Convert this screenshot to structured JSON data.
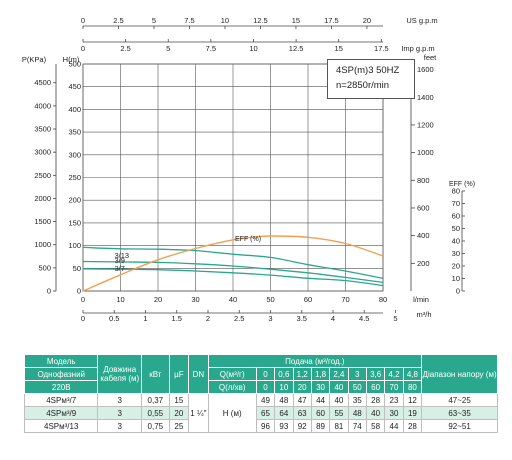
{
  "chart_data": {
    "type": "line",
    "title": "4SP(m)3  50HZ",
    "subtitle": "n=2850r/min",
    "axes": {
      "x_bottom": {
        "label": "l/min",
        "range": [
          0,
          80
        ],
        "ticks": [
          "0",
          "10",
          "20",
          "30",
          "40",
          "50",
          "60",
          "70",
          "80"
        ]
      },
      "x_bottom2": {
        "label": "m³/h",
        "ticks": [
          "0",
          "0.5",
          "1",
          "1.5",
          "2",
          "2.5",
          "3",
          "3.5",
          "4",
          "4.5",
          "5"
        ]
      },
      "x_top_us": {
        "label": "US g.p.m",
        "ticks": [
          "0",
          "2.5",
          "5",
          "7.5",
          "10",
          "12.5",
          "15",
          "17.5",
          "20"
        ]
      },
      "x_top_imp": {
        "label": "Imp g.p.m",
        "ticks": [
          "0",
          "2.5",
          "5",
          "7.5",
          "10",
          "12.5",
          "15",
          "17.5"
        ]
      },
      "y_head": {
        "label": "H(m)",
        "range": [
          0,
          500
        ],
        "ticks": [
          "0",
          "50",
          "100",
          "150",
          "200",
          "250",
          "300",
          "350",
          "400",
          "450",
          "500"
        ]
      },
      "y_pressure": {
        "label": "P(KPa)",
        "ticks": [
          "0",
          "500",
          "1000",
          "1500",
          "2000",
          "2500",
          "3000",
          "3500",
          "4000",
          "4500"
        ]
      },
      "y_feet": {
        "label": "feet",
        "ticks": [
          "200",
          "400",
          "600",
          "800",
          "1000",
          "1200",
          "1400",
          "1600"
        ]
      },
      "y_eff": {
        "label": "EFF (%)",
        "range": [
          0,
          80
        ],
        "ticks": [
          "0",
          "10",
          "20",
          "30",
          "40",
          "50",
          "60",
          "70",
          "80"
        ]
      }
    },
    "grid": true,
    "series": [
      {
        "name": "3/13",
        "color": "#2aa88e",
        "x": [
          0,
          10,
          20,
          30,
          40,
          50,
          60,
          70,
          80
        ],
        "y": [
          96,
          93,
          92,
          89,
          81,
          74,
          58,
          44,
          28
        ]
      },
      {
        "name": "3/9",
        "color": "#2aa88e",
        "x": [
          0,
          10,
          20,
          30,
          40,
          50,
          60,
          70,
          80
        ],
        "y": [
          65,
          64,
          63,
          60,
          55,
          48,
          40,
          30,
          19
        ]
      },
      {
        "name": "3/7",
        "color": "#2aa88e",
        "x": [
          0,
          10,
          20,
          30,
          40,
          50,
          60,
          70,
          80
        ],
        "y": [
          49,
          48,
          47,
          44,
          40,
          35,
          28,
          23,
          12
        ]
      },
      {
        "name": "EFF",
        "label": "EFF (%)",
        "color": "#f0a050",
        "axis": "y_eff",
        "x": [
          0,
          10,
          20,
          30,
          40,
          45,
          50,
          60,
          70,
          80
        ],
        "y": [
          0,
          13,
          25,
          34,
          41,
          43,
          44,
          43,
          38,
          28
        ]
      }
    ]
  },
  "info": {
    "model": "4SP(m)3  50HZ",
    "speed": "n=2850r/min"
  },
  "table": {
    "h_model": "Модель",
    "h_single": "Однофазний",
    "h_voltage": "220В",
    "h_length": "Довжина кабеля (м)",
    "h_kw": "кВт",
    "h_uf": "µF",
    "h_dn": "DN",
    "h_flow": "Подача (м³/год.)",
    "h_q_m3": "Q(м³/г)",
    "h_q_lmin": "Q(л/хв)",
    "h_range": "Діапазон напору (м)",
    "q_m3": [
      "0",
      "0,6",
      "1,2",
      "1,8",
      "2,4",
      "3",
      "3,6",
      "4,2",
      "4,8"
    ],
    "q_lmin": [
      "0",
      "10",
      "20",
      "30",
      "40",
      "50",
      "60",
      "70",
      "80"
    ],
    "dn_value": "1 ¼\"",
    "h_label": "Н (м)",
    "rows": [
      {
        "model": "4SPм³/7",
        "cable": "3",
        "kw": "0,37",
        "uf": "15",
        "h": [
          "49",
          "48",
          "47",
          "44",
          "40",
          "35",
          "28",
          "23",
          "12"
        ],
        "range": "47~25"
      },
      {
        "model": "4SPм³/9",
        "cable": "3",
        "kw": "0,55",
        "uf": "20",
        "h": [
          "65",
          "64",
          "63",
          "60",
          "55",
          "48",
          "40",
          "30",
          "19"
        ],
        "range": "63~35"
      },
      {
        "model": "4SPм³/13",
        "cable": "3",
        "kw": "0,75",
        "uf": "25",
        "h": [
          "96",
          "93",
          "92",
          "89",
          "81",
          "74",
          "58",
          "44",
          "28"
        ],
        "range": "92~51"
      }
    ]
  }
}
